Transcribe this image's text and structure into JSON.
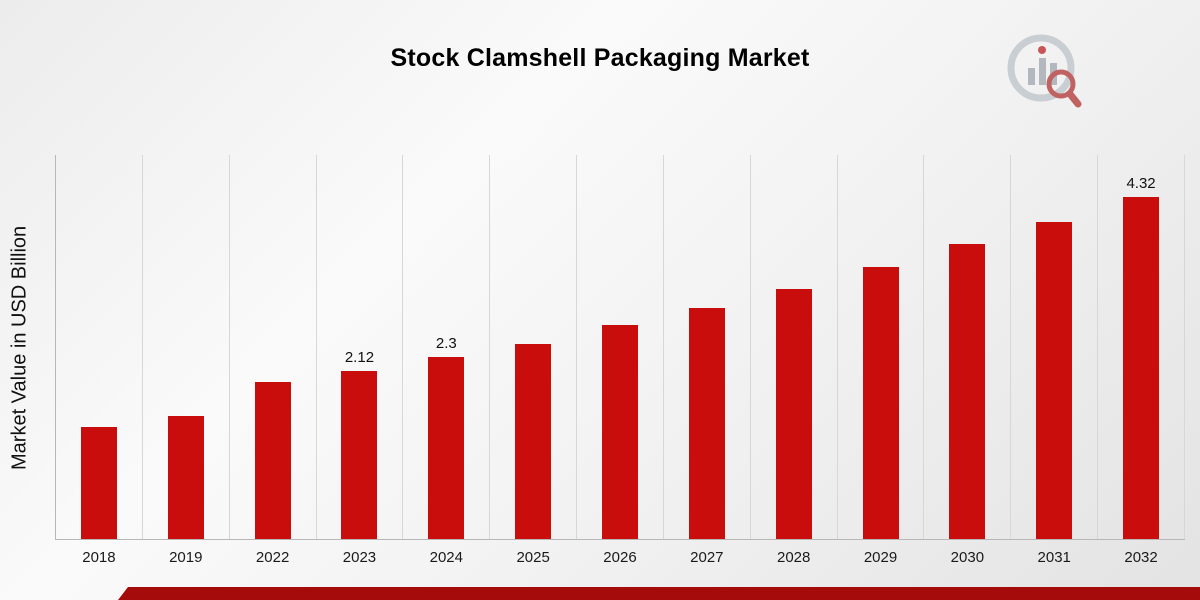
{
  "chart_data": {
    "type": "bar",
    "title": "Stock Clamshell Packaging Market",
    "ylabel": "Market Value in USD Billion",
    "xlabel": "",
    "categories": [
      "2018",
      "2019",
      "2022",
      "2023",
      "2024",
      "2025",
      "2026",
      "2027",
      "2028",
      "2029",
      "2030",
      "2031",
      "2032"
    ],
    "values": [
      1.42,
      1.55,
      1.98,
      2.12,
      2.3,
      2.46,
      2.7,
      2.92,
      3.16,
      3.44,
      3.73,
      4.01,
      4.32
    ],
    "bar_labels": [
      "",
      "",
      "",
      "2.12",
      "2.3",
      "",
      "",
      "",
      "",
      "",
      "",
      "",
      "4.32"
    ],
    "ylim": [
      0,
      4.85
    ],
    "grid": "vertical-gridlines",
    "legend": "none",
    "bar_color": "#c90d0d"
  },
  "branding": {
    "logo_name": "market-research-chart-magnifier-logo",
    "accent_red": "#c90d0d",
    "stripe_red": "#a50b0b",
    "logo_gray": "#aab0b8"
  }
}
